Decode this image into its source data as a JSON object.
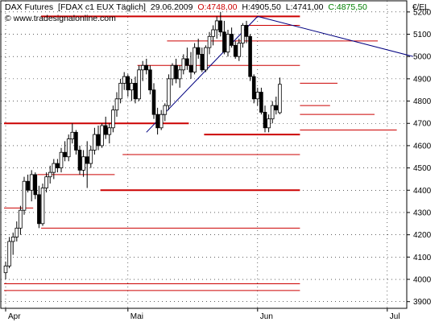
{
  "header": {
    "name": "DAX Futures",
    "symbol": "[FDAX c1 EUX  Täglich]",
    "date": "29.06.2009",
    "open": "O:4748,00",
    "high": "H:4905,50",
    "low": "L:4741,00",
    "close": "C:4875,50",
    "source": "© www.tradesignalonline.com",
    "currency": "€/EL"
  },
  "colors": {
    "up": "#ffffff",
    "down": "#000000",
    "support_resistance": "#cc0000",
    "trendline": "#000080",
    "open_text": "#cc0000",
    "close_text": "#008000",
    "grid": "#000000",
    "background": "#ffffff"
  },
  "chart_data": {
    "type": "candlestick",
    "ylim": [
      3870,
      5250
    ],
    "y_ticks": [
      3900,
      4000,
      4100,
      4200,
      4300,
      4400,
      4500,
      4600,
      4700,
      4800,
      4900,
      5000,
      5100,
      5200
    ],
    "y_tick_labels": [
      "3900",
      "4000",
      "4100",
      "4200",
      "4300",
      "4400",
      "4500",
      "4600",
      "4700",
      "4800",
      "4900",
      "5000",
      "5100",
      "5200"
    ],
    "x_labels": [
      "Apr",
      "Mai",
      "Jun",
      "Jul"
    ],
    "x_label_index": [
      0,
      33,
      68,
      103
    ],
    "grid": "dotted",
    "candles": [
      [
        4030,
        4080,
        4000,
        4060
      ],
      [
        4060,
        4190,
        4050,
        4170
      ],
      [
        4170,
        4210,
        4110,
        4190
      ],
      [
        4190,
        4260,
        4170,
        4230
      ],
      [
        4230,
        4330,
        4200,
        4310
      ],
      [
        4310,
        4460,
        4290,
        4440
      ],
      [
        4440,
        4470,
        4390,
        4400
      ],
      [
        4400,
        4490,
        4350,
        4470
      ],
      [
        4470,
        4480,
        4360,
        4380
      ],
      [
        4380,
        4420,
        4230,
        4250
      ],
      [
        4250,
        4430,
        4240,
        4410
      ],
      [
        4410,
        4480,
        4390,
        4460
      ],
      [
        4460,
        4510,
        4430,
        4480
      ],
      [
        4480,
        4540,
        4450,
        4520
      ],
      [
        4520,
        4540,
        4480,
        4500
      ],
      [
        4500,
        4590,
        4480,
        4570
      ],
      [
        4570,
        4620,
        4530,
        4550
      ],
      [
        4550,
        4650,
        4530,
        4630
      ],
      [
        4630,
        4700,
        4610,
        4660
      ],
      [
        4660,
        4670,
        4560,
        4580
      ],
      [
        4580,
        4600,
        4470,
        4490
      ],
      [
        4490,
        4580,
        4460,
        4550
      ],
      [
        4550,
        4620,
        4410,
        4520
      ],
      [
        4520,
        4600,
        4500,
        4580
      ],
      [
        4580,
        4680,
        4560,
        4650
      ],
      [
        4650,
        4690,
        4580,
        4600
      ],
      [
        4600,
        4700,
        4590,
        4690
      ],
      [
        4690,
        4730,
        4630,
        4650
      ],
      [
        4650,
        4700,
        4610,
        4680
      ],
      [
        4680,
        4780,
        4660,
        4760
      ],
      [
        4760,
        4840,
        4730,
        4810
      ],
      [
        4810,
        4900,
        4790,
        4880
      ],
      [
        4880,
        4930,
        4850,
        4910
      ],
      [
        4910,
        4920,
        4820,
        4850
      ],
      [
        4850,
        4900,
        4800,
        4880
      ],
      [
        4880,
        4910,
        4790,
        4810
      ],
      [
        4810,
        4960,
        4800,
        4940
      ],
      [
        4940,
        4980,
        4890,
        4960
      ],
      [
        4960,
        4990,
        4920,
        4940
      ],
      [
        4940,
        4960,
        4830,
        4850
      ],
      [
        4850,
        4880,
        4720,
        4740
      ],
      [
        4740,
        4770,
        4650,
        4680
      ],
      [
        4680,
        4760,
        4670,
        4740
      ],
      [
        4740,
        4790,
        4710,
        4780
      ],
      [
        4780,
        4920,
        4760,
        4900
      ],
      [
        4900,
        4970,
        4870,
        4960
      ],
      [
        4960,
        4990,
        4880,
        4900
      ],
      [
        4900,
        4960,
        4860,
        4940
      ],
      [
        4940,
        5010,
        4920,
        4990
      ],
      [
        4990,
        5040,
        4940,
        4960
      ],
      [
        4960,
        5020,
        4900,
        4930
      ],
      [
        4930,
        5060,
        4920,
        5040
      ],
      [
        5040,
        5080,
        4990,
        5010
      ],
      [
        5010,
        5040,
        4930,
        4940
      ],
      [
        4940,
        5050,
        4930,
        5040
      ],
      [
        5040,
        5110,
        5010,
        5090
      ],
      [
        5090,
        5140,
        5050,
        5120
      ],
      [
        5120,
        5180,
        5080,
        5160
      ],
      [
        5160,
        5200,
        5090,
        5110
      ],
      [
        5110,
        5160,
        5010,
        5020
      ],
      [
        5020,
        5120,
        5000,
        5100
      ],
      [
        5100,
        5130,
        5040,
        5050
      ],
      [
        5050,
        5070,
        4990,
        5000
      ],
      [
        5000,
        5080,
        4980,
        5060
      ],
      [
        5060,
        5150,
        5040,
        5140
      ],
      [
        5140,
        5160,
        5060,
        5090
      ],
      [
        5090,
        5100,
        4890,
        4910
      ],
      [
        4910,
        4920,
        4790,
        4810
      ],
      [
        4810,
        4860,
        4780,
        4840
      ],
      [
        4840,
        4860,
        4740,
        4750
      ],
      [
        4750,
        4780,
        4660,
        4680
      ],
      [
        4680,
        4740,
        4660,
        4720
      ],
      [
        4720,
        4800,
        4700,
        4780
      ],
      [
        4780,
        4820,
        4740,
        4760
      ],
      [
        4748,
        4905.5,
        4741,
        4875.5
      ]
    ],
    "horizontal_levels": [
      {
        "price": 5180,
        "weight": "heavy"
      },
      {
        "price": 5140,
        "weight": "thin"
      },
      {
        "price": 5070,
        "weight": "thin"
      },
      {
        "price": 4960,
        "weight": "thin"
      },
      {
        "price": 4880,
        "weight": "thin"
      },
      {
        "price": 4780,
        "weight": "thin"
      },
      {
        "price": 4740,
        "weight": "thin"
      },
      {
        "price": 4700,
        "weight": "heavy"
      },
      {
        "price": 4670,
        "weight": "thin"
      },
      {
        "price": 4650,
        "weight": "heavy"
      },
      {
        "price": 4560,
        "weight": "thin"
      },
      {
        "price": 4470,
        "weight": "thin"
      },
      {
        "price": 4400,
        "weight": "heavy"
      },
      {
        "price": 4320,
        "weight": "thin"
      },
      {
        "price": 4230,
        "weight": "thin"
      },
      {
        "price": 3980,
        "weight": "thin"
      },
      {
        "price": 3950,
        "weight": "thin"
      }
    ],
    "trendlines": [
      {
        "from": [
          38,
          4660
        ],
        "to": [
          68,
          5180
        ],
        "color": "#000080"
      },
      {
        "from": [
          68,
          5180
        ],
        "to": [
          110,
          5000
        ],
        "color": "#000080"
      }
    ]
  }
}
